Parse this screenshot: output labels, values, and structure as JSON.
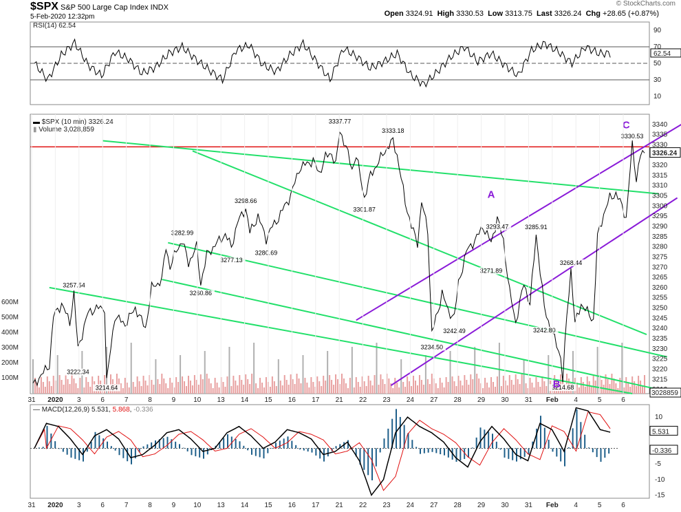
{
  "header": {
    "symbol": "$SPX",
    "name": "S&P 500 Large Cap Index",
    "exchange": "INDX",
    "timestamp": "5-Feb-2020 12:32pm",
    "open_label": "Open",
    "open": "3324.91",
    "high_label": "High",
    "high": "3330.53",
    "low_label": "Low",
    "low": "3313.75",
    "last_label": "Last",
    "last": "3326.24",
    "chg_label": "Chg",
    "chg": "+28.65 (+0.87%)",
    "watermark": "© StockCharts.com"
  },
  "colors": {
    "price": "#000000",
    "green": "#22e06a",
    "purple": "#8a1bd8",
    "red": "#e01010",
    "volume": "#e8a0a0",
    "volume_gray": "#b0b0b0",
    "macd_line": "#000000",
    "signal": "#e01010",
    "hist": "#1e5f8a"
  },
  "chart_data": [
    {
      "type": "line",
      "title": "RSI(14) 62.54",
      "legend": "RSI(14)",
      "value": "62.54",
      "y_ticks": [
        "90",
        "70",
        "50",
        "30",
        "10"
      ],
      "ylim": [
        0,
        100
      ],
      "levels": [
        70,
        50,
        30
      ],
      "approx_points": [
        50,
        30,
        60,
        75,
        48,
        35,
        64,
        55,
        38,
        45,
        62,
        70,
        55,
        42,
        30,
        66,
        72,
        48,
        40,
        60,
        74,
        52,
        30,
        68,
        58,
        44,
        52,
        62,
        36,
        24,
        40,
        58,
        70,
        52,
        62,
        48,
        35,
        66,
        74,
        64,
        50,
        70,
        62
      ]
    },
    {
      "type": "line",
      "title": "$SPX (10 min) 3326.24",
      "legend": "$SPX (10 min)",
      "value": "3326.24",
      "volume_label": "Volume",
      "volume_value": "3,028,859",
      "ylim": [
        3208,
        3345
      ],
      "y_ticks": [
        "3340",
        "3335",
        "3330",
        "3325",
        "3320",
        "3315",
        "3310",
        "3305",
        "3300",
        "3295",
        "3290",
        "3285",
        "3280",
        "3275",
        "3270",
        "3265",
        "3260",
        "3255",
        "3250",
        "3245",
        "3240",
        "3235",
        "3230",
        "3225",
        "3220",
        "3215",
        "3210"
      ],
      "last_price_tag": "3326.24",
      "resistance": 3329,
      "volume_axis": [
        "600M",
        "500M",
        "400M",
        "300M",
        "200M",
        "100M"
      ],
      "volume_last_tag": "3028859",
      "price_path": [
        [
          0,
          3212
        ],
        [
          8,
          3222
        ],
        [
          10,
          3246
        ],
        [
          14,
          3252
        ],
        [
          18,
          3243
        ],
        [
          20,
          3257
        ],
        [
          22,
          3230
        ],
        [
          27,
          3248
        ],
        [
          32,
          3250
        ],
        [
          35,
          3250
        ],
        [
          36,
          3214
        ],
        [
          40,
          3246
        ],
        [
          45,
          3242
        ],
        [
          50,
          3250
        ],
        [
          55,
          3240
        ],
        [
          58,
          3260
        ],
        [
          61,
          3262
        ],
        [
          63,
          3264
        ],
        [
          65,
          3280
        ],
        [
          67,
          3270
        ],
        [
          70,
          3278
        ],
        [
          73,
          3283
        ],
        [
          76,
          3272
        ],
        [
          80,
          3280
        ],
        [
          82,
          3262
        ],
        [
          85,
          3276
        ],
        [
          90,
          3282
        ],
        [
          94,
          3286
        ],
        [
          97,
          3280
        ],
        [
          100,
          3292
        ],
        [
          104,
          3299
        ],
        [
          106,
          3287
        ],
        [
          110,
          3295
        ],
        [
          114,
          3284
        ],
        [
          117,
          3290
        ],
        [
          120,
          3294
        ],
        [
          123,
          3300
        ],
        [
          126,
          3305
        ],
        [
          130,
          3318
        ],
        [
          134,
          3321
        ],
        [
          137,
          3322
        ],
        [
          140,
          3316
        ],
        [
          143,
          3324
        ],
        [
          146,
          3326
        ],
        [
          148,
          3320
        ],
        [
          150,
          3337
        ],
        [
          153,
          3329
        ],
        [
          156,
          3318
        ],
        [
          158,
          3325
        ],
        [
          162,
          3304
        ],
        [
          165,
          3315
        ],
        [
          168,
          3320
        ],
        [
          172,
          3327
        ],
        [
          176,
          3332
        ],
        [
          178,
          3325
        ],
        [
          182,
          3302
        ],
        [
          185,
          3290
        ],
        [
          188,
          3282
        ],
        [
          190,
          3302
        ],
        [
          193,
          3288
        ],
        [
          195,
          3238
        ],
        [
          198,
          3248
        ],
        [
          200,
          3258
        ],
        [
          203,
          3248
        ],
        [
          206,
          3246
        ],
        [
          208,
          3262
        ],
        [
          212,
          3278
        ],
        [
          216,
          3283
        ],
        [
          220,
          3290
        ],
        [
          224,
          3282
        ],
        [
          227,
          3294
        ],
        [
          230,
          3283
        ],
        [
          233,
          3258
        ],
        [
          236,
          3243
        ],
        [
          240,
          3262
        ],
        [
          243,
          3252
        ],
        [
          246,
          3286
        ],
        [
          250,
          3250
        ],
        [
          253,
          3240
        ],
        [
          256,
          3232
        ],
        [
          258,
          3226
        ],
        [
          259,
          3215
        ],
        [
          261,
          3246
        ],
        [
          263,
          3269
        ],
        [
          265,
          3242
        ],
        [
          268,
          3252
        ],
        [
          271,
          3248
        ],
        [
          274,
          3244
        ],
        [
          276,
          3285
        ],
        [
          279,
          3296
        ],
        [
          282,
          3304
        ],
        [
          285,
          3306
        ],
        [
          288,
          3300
        ],
        [
          290,
          3294
        ],
        [
          293,
          3330
        ],
        [
          295,
          3313
        ],
        [
          297,
          3325
        ],
        [
          299,
          3326
        ]
      ],
      "annotations": [
        {
          "label": "3257.54",
          "i": 20,
          "y": 3257.5,
          "pos": "above"
        },
        {
          "label": "3222.34",
          "i": 22,
          "y": 3222.3,
          "pos": "below"
        },
        {
          "label": "3214.64",
          "i": 36,
          "y": 3214.6,
          "pos": "below"
        },
        {
          "label": "3282.99",
          "i": 73,
          "y": 3283,
          "pos": "above"
        },
        {
          "label": "3260.86",
          "i": 82,
          "y": 3260.9,
          "pos": "below"
        },
        {
          "label": "3277.13",
          "i": 97,
          "y": 3277.1,
          "pos": "below"
        },
        {
          "label": "3298.66",
          "i": 104,
          "y": 3298.7,
          "pos": "above"
        },
        {
          "label": "3280.69",
          "i": 114,
          "y": 3280.7,
          "pos": "below"
        },
        {
          "label": "3337.77",
          "i": 150,
          "y": 3337.8,
          "pos": "above"
        },
        {
          "label": "3333.18",
          "i": 176,
          "y": 3333.2,
          "pos": "above"
        },
        {
          "label": "3301.87",
          "i": 162,
          "y": 3301.9,
          "pos": "below"
        },
        {
          "label": "3293.47",
          "i": 227,
          "y": 3293.5,
          "pos": "below"
        },
        {
          "label": "3285.91",
          "i": 246,
          "y": 3285.9,
          "pos": "above"
        },
        {
          "label": "3271.89",
          "i": 224,
          "y": 3271.9,
          "pos": "below"
        },
        {
          "label": "3242.49",
          "i": 206,
          "y": 3242.5,
          "pos": "below"
        },
        {
          "label": "3234.50",
          "i": 195,
          "y": 3234.5,
          "pos": "below"
        },
        {
          "label": "3242.80",
          "i": 250,
          "y": 3242.8,
          "pos": "below"
        },
        {
          "label": "3268.44",
          "i": 263,
          "y": 3268.4,
          "pos": "above"
        },
        {
          "label": "3214.68",
          "i": 259,
          "y": 3214.7,
          "pos": "below"
        },
        {
          "label": "3330.53",
          "i": 293,
          "y": 3330.5,
          "pos": "above"
        }
      ],
      "waves": [
        {
          "label": "A",
          "i": 224,
          "y": 3304
        },
        {
          "label": "B",
          "i": 256,
          "y": 3211
        },
        {
          "label": "C",
          "i": 290,
          "y": 3338
        }
      ],
      "green_channels": [
        [
          [
            34,
            3332
          ],
          [
            306,
            3306
          ]
        ],
        [
          [
            78,
            3327
          ],
          [
            300,
            3237
          ]
        ],
        [
          [
            66,
            3282
          ],
          [
            310,
            3226
          ]
        ],
        [
          [
            63,
            3264
          ],
          [
            306,
            3210
          ]
        ],
        [
          [
            8,
            3260
          ],
          [
            293,
            3208
          ]
        ]
      ],
      "purple_channels": [
        [
          [
            158,
            3244
          ],
          [
            317,
            3340
          ]
        ],
        [
          [
            175,
            3212
          ],
          [
            315,
            3304
          ]
        ]
      ]
    },
    {
      "type": "line",
      "title": "MACD(12,26,9) 5.531, 5.868, -0.336",
      "legend": "MACD(12,26,9)",
      "macd": "5.531",
      "signal": "5.868",
      "histogram": "-0.336",
      "ylim": [
        -16,
        14
      ],
      "y_ticks": [
        "10",
        "5",
        "0",
        "-5",
        "-10",
        "-15"
      ],
      "macd_tag": "5.531",
      "hist_tag": "-0.336",
      "approx_macd": [
        0,
        8,
        7,
        3,
        -2,
        4,
        6,
        3,
        -3,
        -2,
        1,
        5,
        6,
        3,
        -1,
        0,
        5,
        7,
        4,
        0,
        2,
        6,
        5,
        3,
        -2,
        -1,
        2,
        -4,
        -15,
        -10,
        5,
        10,
        7,
        5,
        2,
        -3,
        -6,
        2,
        7,
        3,
        -2,
        -4,
        8,
        6,
        -1,
        13,
        12,
        6,
        5
      ]
    }
  ],
  "x_axis": {
    "labels": [
      "31",
      "2020",
      "3",
      "6",
      "7",
      "8",
      "9",
      "10",
      "13",
      "14",
      "15",
      "16",
      "17",
      "21",
      "22",
      "23",
      "24",
      "27",
      "28",
      "29",
      "30",
      "31",
      "Feb",
      "4",
      "5",
      "6"
    ]
  }
}
